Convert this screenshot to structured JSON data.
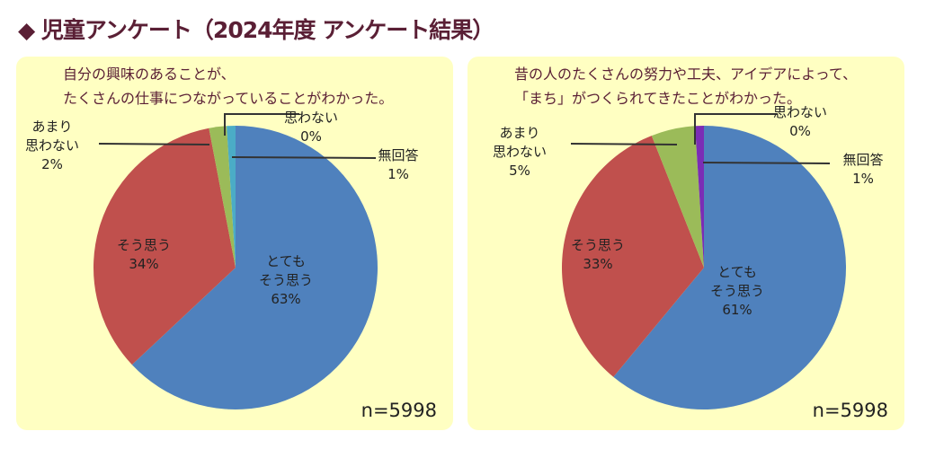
{
  "header": {
    "title": "◆ 児童アンケート（2024年度 アンケート結果）",
    "accent_color": "#5a1f35"
  },
  "chart_data": [
    {
      "type": "pie",
      "title": "自分の興味のあることが、\nたくさんの仕事につながっていることがわかった。",
      "slices": [
        {
          "label": "とても\nそう思う",
          "value": 63,
          "text": "63%",
          "color": "#4f81bd"
        },
        {
          "label": "そう思う",
          "value": 34,
          "text": "34%",
          "color": "#c0504d"
        },
        {
          "label": "あまり\n思わない",
          "value": 2,
          "text": "2%",
          "color": "#9bbb59"
        },
        {
          "label": "思わない",
          "value": 0,
          "text": "0%",
          "color": "#8064a2"
        },
        {
          "label": "無回答",
          "value": 1,
          "text": "1%",
          "color": "#4bacc6"
        }
      ],
      "n": "n=5998"
    },
    {
      "type": "pie",
      "title": "昔の人のたくさんの努力や工夫、アイデアによって、\n「まち」がつくられてきたことがわかった。",
      "slices": [
        {
          "label": "とても\nそう思う",
          "value": 61,
          "text": "61%",
          "color": "#4f81bd"
        },
        {
          "label": "そう思う",
          "value": 33,
          "text": "33%",
          "color": "#c0504d"
        },
        {
          "label": "あまり\n思わない",
          "value": 5,
          "text": "5%",
          "color": "#9bbb59"
        },
        {
          "label": "思わない",
          "value": 0,
          "text": "0%",
          "color": "#8064a2"
        },
        {
          "label": "無回答",
          "value": 1,
          "text": "1%",
          "color": "#7b2db5"
        }
      ],
      "n": "n=5998"
    }
  ]
}
